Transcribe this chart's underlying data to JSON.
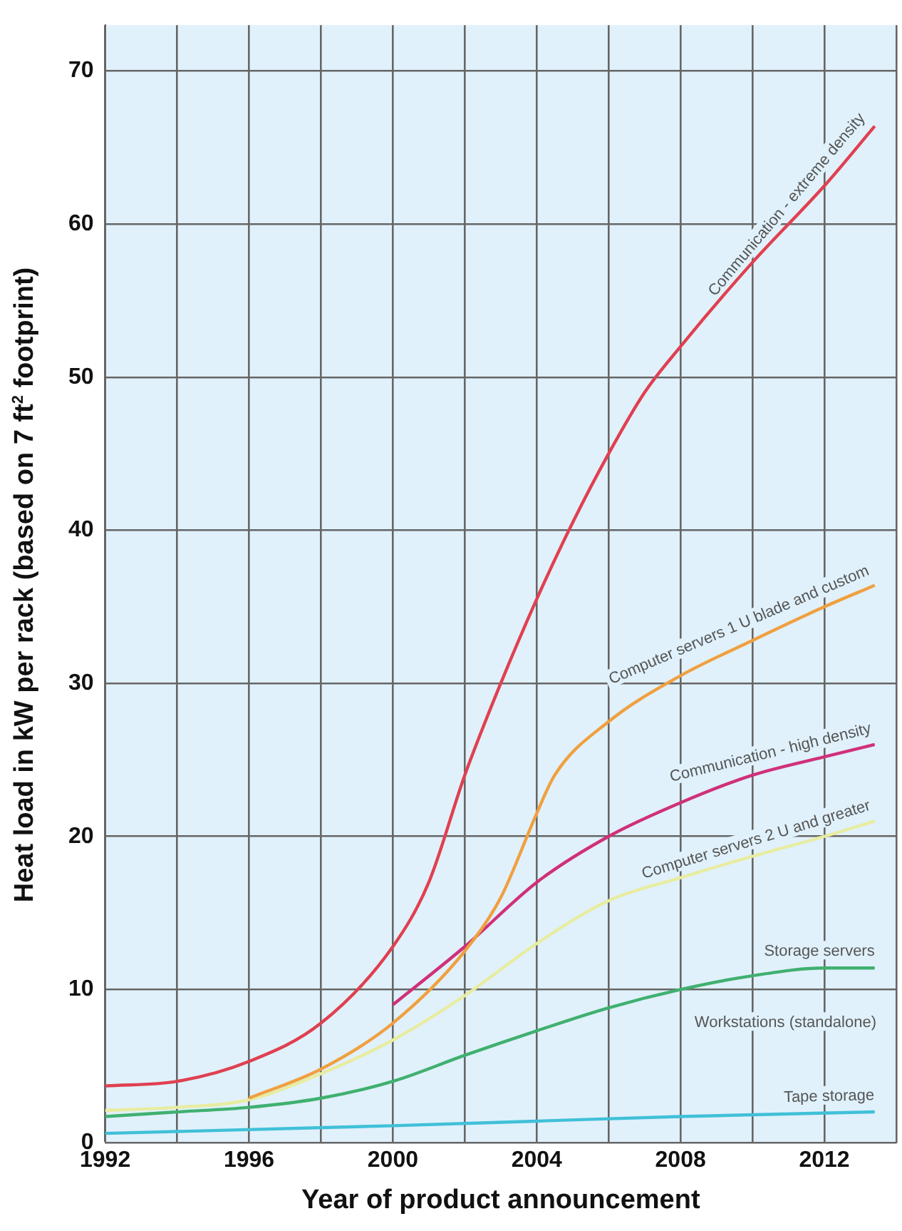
{
  "chart_data": {
    "type": "line",
    "xlabel": "Year of product announcement",
    "ylabel": "Heat load in kW per rack (based on 7 ft$^{2}$ footprint)",
    "xlim": [
      1992,
      2014
    ],
    "ylim": [
      0,
      73
    ],
    "xticks": [
      1992,
      {
        "value": 1994,
        "label": null
      },
      1996,
      {
        "value": 1998,
        "label": null
      },
      2000,
      {
        "value": 2002,
        "label": null
      },
      2004,
      {
        "value": 2006,
        "label": null
      },
      2008,
      {
        "value": 2010,
        "label": null
      },
      2012,
      {
        "value": 2014,
        "label": null
      }
    ],
    "yticks": [
      0,
      10,
      20,
      30,
      40,
      50,
      60,
      70
    ],
    "grid": true,
    "legend": false,
    "marker": "none",
    "line_style": "solid",
    "series": [
      {
        "name": "Communication - extreme density",
        "color": "#e04050",
        "x": [
          1992,
          1994,
          1996,
          1998,
          2000,
          2001,
          2002,
          2003,
          2004,
          2005,
          2006,
          2007,
          2008,
          2010,
          2012,
          2013.4
        ],
        "values": [
          3.7,
          4.0,
          5.3,
          7.8,
          12.8,
          17,
          24,
          30,
          35.5,
          40.5,
          45,
          49,
          52,
          57.5,
          62.5,
          66.4
        ]
      },
      {
        "name": "Computer servers 1 U blade and custom",
        "color": "#f0a040",
        "x": [
          1996,
          1998,
          2000,
          2002,
          2003,
          2004,
          2004.5,
          2006,
          2008,
          2010,
          2012,
          2013.4
        ],
        "values": [
          2.9,
          4.8,
          7.8,
          12.5,
          16,
          21.5,
          24,
          27.5,
          30.5,
          32.8,
          35,
          36.4
        ]
      },
      {
        "name": "Communication - high density",
        "color": "#d0307a",
        "x": [
          2000,
          2002,
          2004,
          2006,
          2008,
          2010,
          2012,
          2013.4
        ],
        "values": [
          9.0,
          12.8,
          17,
          20,
          22.2,
          24,
          25.2,
          26
        ]
      },
      {
        "name": "Computer servers 2 U and greater",
        "color": "#e8eca0",
        "x": [
          1992,
          1994,
          1996,
          1998,
          2000,
          2002,
          2004,
          2006,
          2008,
          2010,
          2012,
          2013.4
        ],
        "values": [
          2.1,
          2.3,
          2.8,
          4.5,
          6.7,
          9.6,
          13,
          15.8,
          17.3,
          18.7,
          20,
          21
        ]
      },
      {
        "name": "Storage servers",
        "color": "#40b070",
        "x": [
          1992,
          1994,
          1996,
          1998,
          2000,
          2002,
          2004,
          2006,
          2008,
          2010,
          2012,
          2013.4
        ],
        "values": [
          1.7,
          2.0,
          2.3,
          2.9,
          4.0,
          5.7,
          7.3,
          8.8,
          10,
          10.9,
          11.4,
          11.4
        ]
      },
      {
        "name": "Tape storage",
        "color": "#40c0d8",
        "x": [
          1992,
          2000,
          2004,
          2008,
          2013.4
        ],
        "values": [
          0.6,
          1.1,
          1.4,
          1.7,
          2.0
        ]
      }
    ],
    "annotations": [
      "Workstations (standalone)"
    ]
  }
}
